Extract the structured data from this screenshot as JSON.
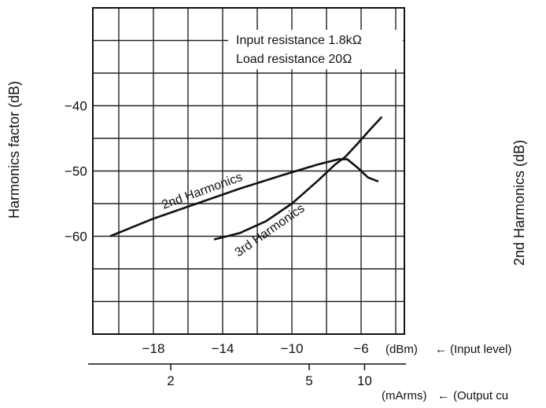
{
  "chart_data": {
    "type": "line",
    "ylabel": "Harmonics factor  (dB)",
    "ylabel_secondary": "2nd Harmonics  (dB)",
    "x_primary": {
      "unit_label": "(dBm)",
      "arrow": "←",
      "quantity_label": "(Input level)",
      "ticks": [
        "−18",
        "−14",
        "−10",
        "−6"
      ],
      "tick_values": [
        -18,
        -14,
        -10,
        -6
      ],
      "range": [
        -21.5,
        -3.5
      ]
    },
    "x_secondary": {
      "unit_label": "(mArms)",
      "arrow": "←",
      "quantity_label": "(Output cu",
      "ticks": [
        "2",
        "5",
        "10"
      ],
      "tick_values_on_primary": [
        -17,
        -9,
        -5.8
      ]
    },
    "y_ticks": [
      "−40",
      "−50",
      "−60"
    ],
    "y_tick_values": [
      -40,
      -50,
      -60
    ],
    "ylim": [
      -75,
      -25
    ],
    "grid": true,
    "annotations": [
      "Input resistance 1.8kΩ",
      "Load resistance 20Ω"
    ],
    "series": [
      {
        "name": "2nd Harmonics",
        "x": [
          -20.5,
          -18,
          -15.5,
          -13,
          -10.5,
          -8.5,
          -7.3,
          -6.8,
          -6.2,
          -5.6,
          -5
        ],
        "y": [
          -60,
          -57.3,
          -55,
          -52.7,
          -50.6,
          -49,
          -48.2,
          -48.2,
          -49.5,
          -51,
          -51.6
        ]
      },
      {
        "name": "3rd Harmonics",
        "x": [
          -14.5,
          -13,
          -11.5,
          -10,
          -8.5,
          -7.5,
          -6.9,
          -6.2,
          -5.5,
          -4.8
        ],
        "y": [
          -60.5,
          -59.5,
          -57.7,
          -55,
          -51.5,
          -49,
          -47.8,
          -45.8,
          -43.7,
          -41.7
        ]
      }
    ]
  }
}
